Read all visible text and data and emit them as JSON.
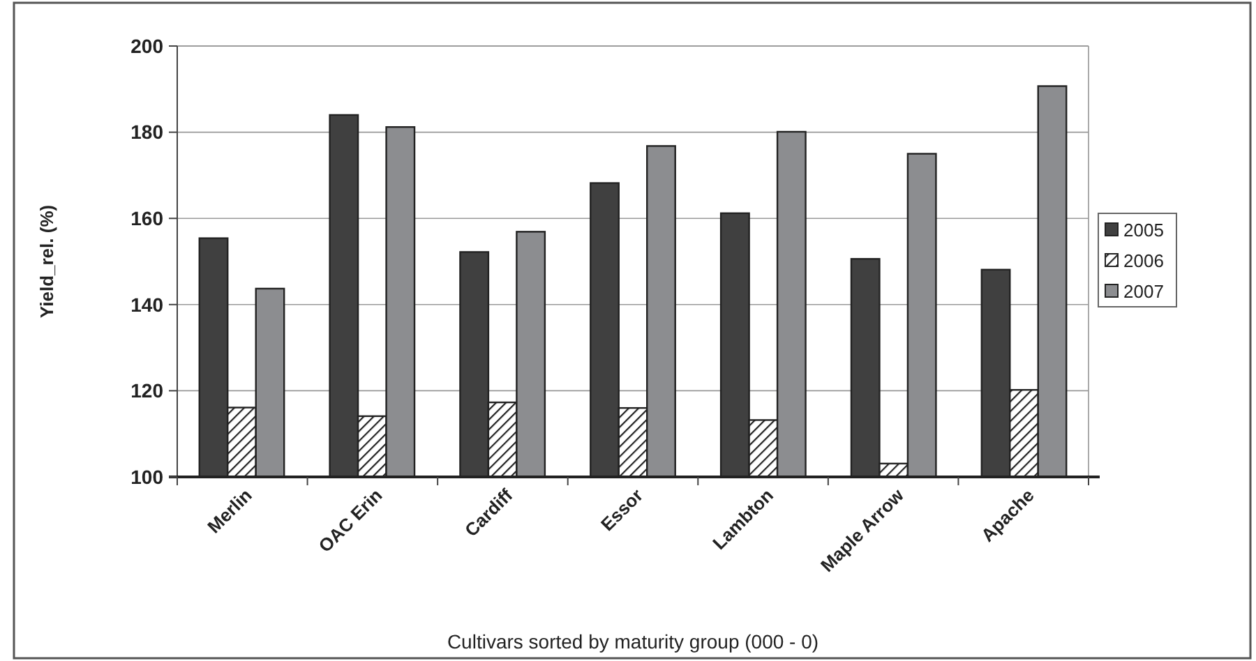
{
  "chart_data": {
    "type": "bar",
    "xlabel": "Cultivars sorted by maturity group (000 - 0)",
    "ylabel": "Yield_rel. (%)",
    "categories": [
      "Merlin",
      "OAC Erin",
      "Cardiff",
      "Essor",
      "Lambton",
      "Maple Arrow",
      "Apache"
    ],
    "series": [
      {
        "name": "2005",
        "color": "#404040",
        "values": [
          155.4,
          184.0,
          152.2,
          168.2,
          161.2,
          150.6,
          148.1
        ]
      },
      {
        "name": "2006",
        "color": "#222222",
        "values": [
          116.1,
          114.1,
          117.3,
          116.0,
          113.2,
          103.1,
          120.2
        ]
      },
      {
        "name": "2007",
        "color": "#8c8d90",
        "values": [
          143.7,
          181.2,
          156.9,
          176.8,
          180.1,
          175.0,
          190.7
        ]
      }
    ],
    "ylim": [
      100,
      200
    ],
    "yticks": [
      100,
      120,
      140,
      160,
      180,
      200
    ],
    "grid": "y",
    "legend": "right"
  }
}
